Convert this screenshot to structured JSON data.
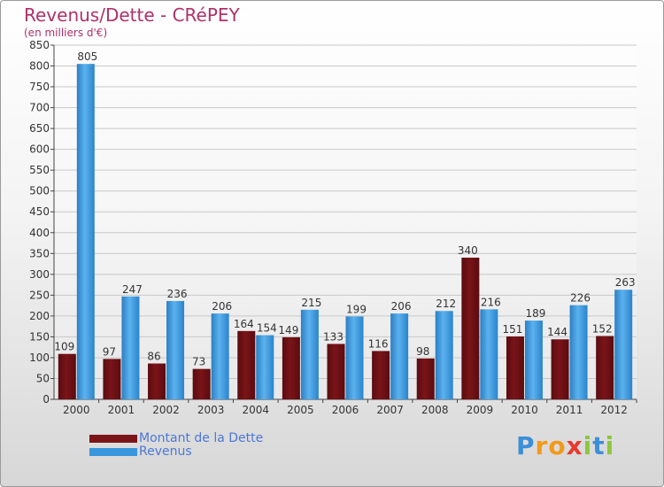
{
  "chart_data": {
    "type": "bar",
    "title": "Revenus/Dette - CRéPEY",
    "subtitle": "(en milliers d'€)",
    "categories": [
      "2000",
      "2001",
      "2002",
      "2003",
      "2004",
      "2005",
      "2006",
      "2007",
      "2008",
      "2009",
      "2010",
      "2011",
      "2012"
    ],
    "series": [
      {
        "name": "Montant de la Dette",
        "color": "#7a1418",
        "values": [
          109,
          97,
          86,
          73,
          164,
          149,
          133,
          116,
          98,
          340,
          151,
          144,
          152
        ]
      },
      {
        "name": "Revenus",
        "color": "#3a97dd",
        "values": [
          805,
          247,
          236,
          206,
          154,
          215,
          199,
          206,
          212,
          216,
          189,
          226,
          263
        ]
      }
    ],
    "ylim": [
      0,
      850
    ],
    "yticks": [
      0,
      50,
      100,
      150,
      200,
      250,
      300,
      350,
      400,
      450,
      500,
      550,
      600,
      650,
      700,
      750,
      800,
      850
    ],
    "xlabel": "",
    "ylabel": "",
    "grid": true,
    "legend": "bottom-left"
  },
  "logo": {
    "letters": [
      "P",
      "r",
      "o",
      "x",
      "i",
      "t",
      "i"
    ],
    "colors": [
      "#3b8fd8",
      "#f29a1c",
      "#f29a1c",
      "#e83a2e",
      "#8dc63f",
      "#3b8fd8",
      "#8dc63f"
    ]
  }
}
